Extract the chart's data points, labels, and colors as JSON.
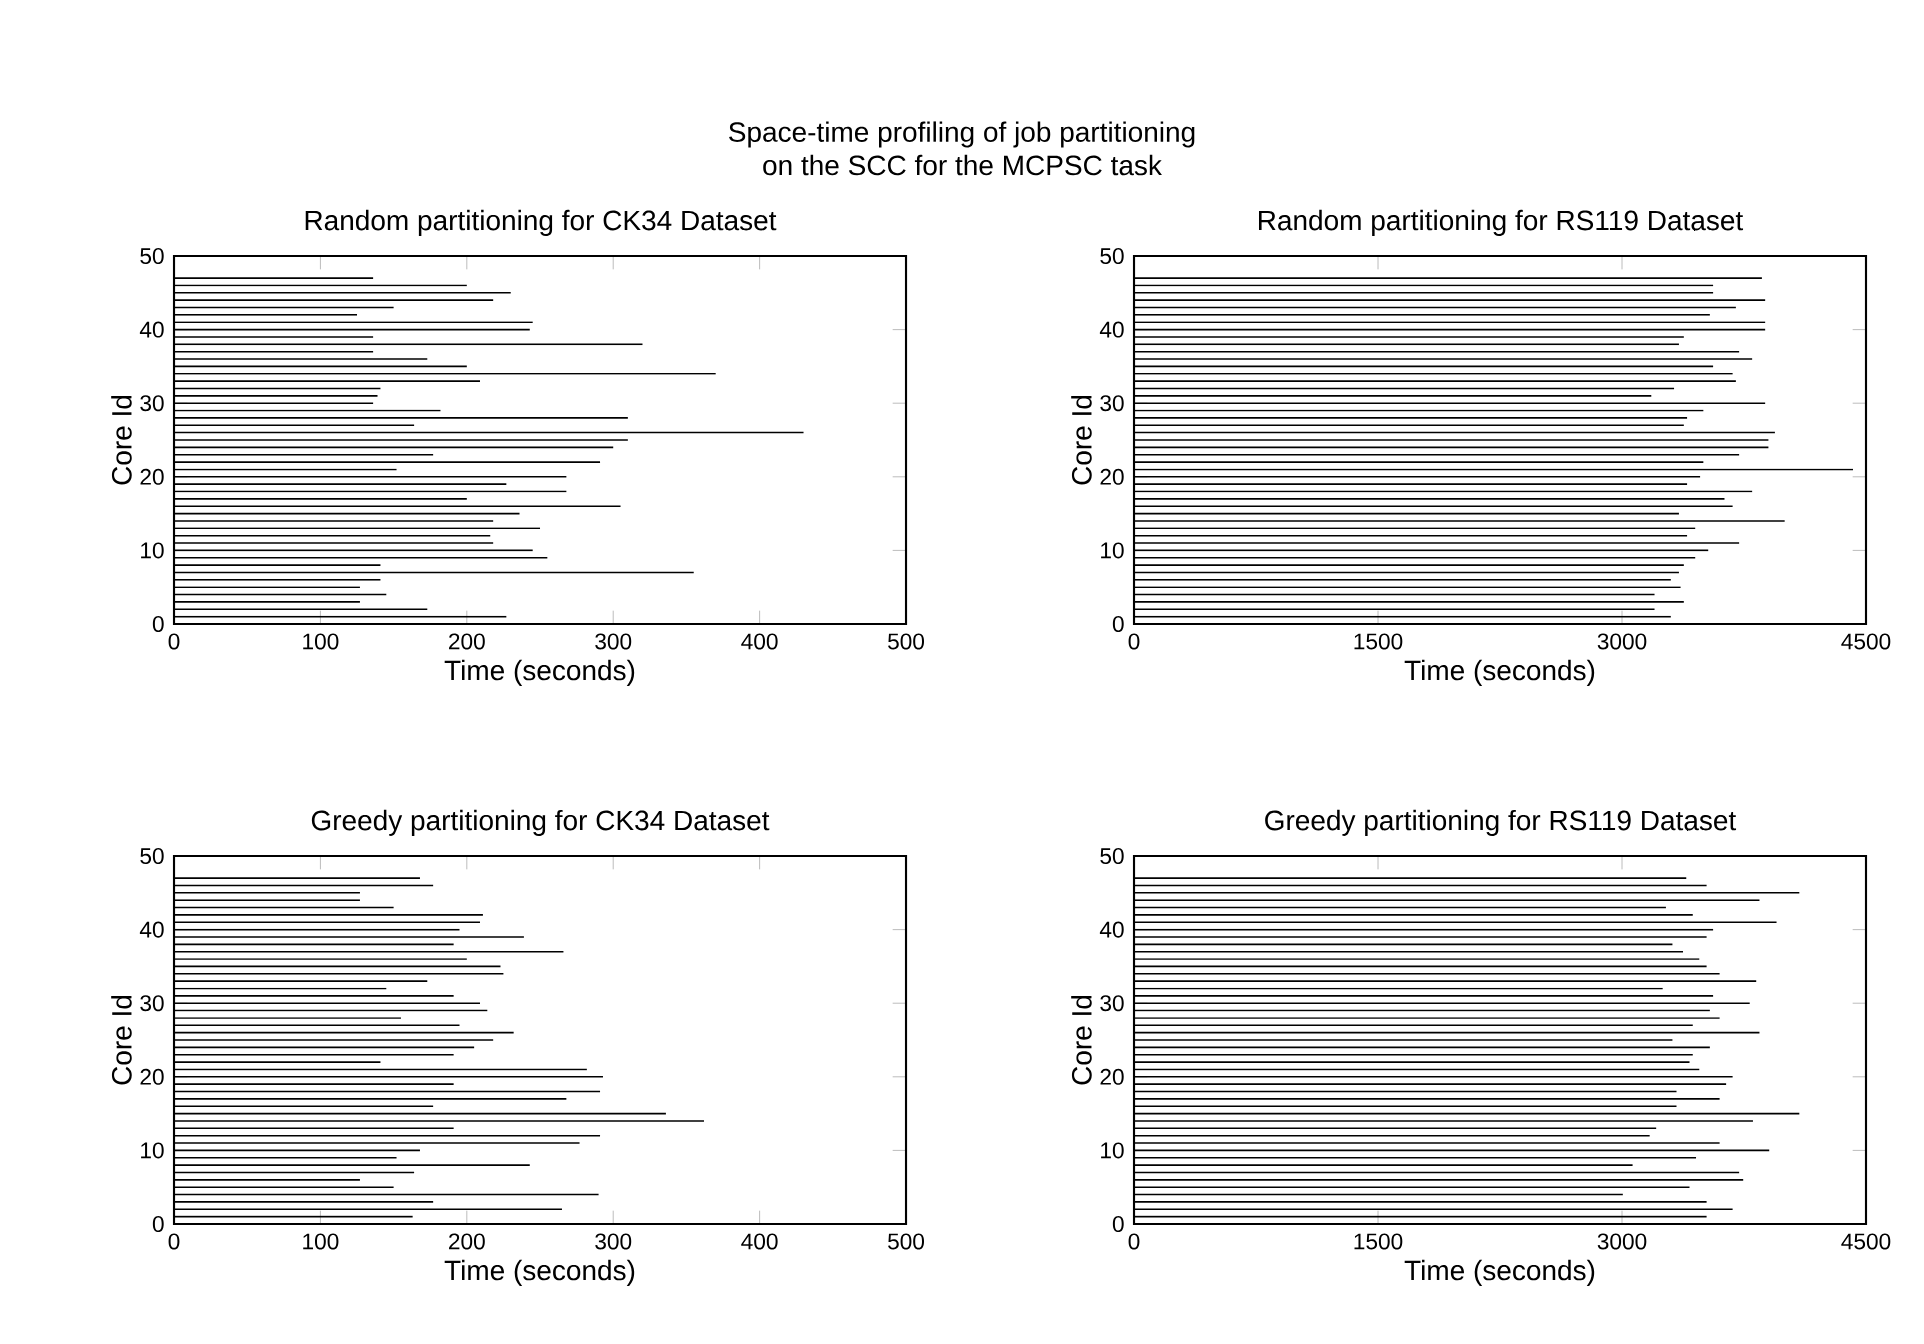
{
  "chart_data": [
    {
      "type": "line",
      "title": "Random partitioning for CK34 Dataset",
      "xlabel": "Time (seconds)",
      "ylabel": "Core Id",
      "annotations": [
        "Space-time profiling of job partitioning",
        "on the SCC for the MCPSC task"
      ],
      "xlim": [
        0,
        500
      ],
      "ylim": [
        0,
        50
      ],
      "xticks": [
        0,
        100,
        200,
        300,
        400,
        500
      ],
      "yticks": [
        0,
        10,
        20,
        30,
        40,
        50
      ],
      "line_style": "solid",
      "series": [
        {
          "color": "#000000",
          "x": [
            0,
            227
          ],
          "values": [
            1,
            1
          ]
        },
        {
          "color": "#000000",
          "x": [
            0,
            173
          ],
          "values": [
            2,
            2
          ]
        },
        {
          "color": "#000000",
          "x": [
            0,
            127
          ],
          "values": [
            3,
            3
          ]
        },
        {
          "color": "#000000",
          "x": [
            0,
            145
          ],
          "values": [
            4,
            4
          ]
        },
        {
          "color": "#000000",
          "x": [
            0,
            127
          ],
          "values": [
            5,
            5
          ]
        },
        {
          "color": "#000000",
          "x": [
            0,
            141
          ],
          "values": [
            6,
            6
          ]
        },
        {
          "color": "#000000",
          "x": [
            0,
            355
          ],
          "values": [
            7,
            7
          ]
        },
        {
          "color": "#000000",
          "x": [
            0,
            141
          ],
          "values": [
            8,
            8
          ]
        },
        {
          "color": "#000000",
          "x": [
            0,
            255
          ],
          "values": [
            9,
            9
          ]
        },
        {
          "color": "#000000",
          "x": [
            0,
            245
          ],
          "values": [
            10,
            10
          ]
        },
        {
          "color": "#000000",
          "x": [
            0,
            218
          ],
          "values": [
            11,
            11
          ]
        },
        {
          "color": "#000000",
          "x": [
            0,
            216
          ],
          "values": [
            12,
            12
          ]
        },
        {
          "color": "#000000",
          "x": [
            0,
            250
          ],
          "values": [
            13,
            13
          ]
        },
        {
          "color": "#000000",
          "x": [
            0,
            218
          ],
          "values": [
            14,
            14
          ]
        },
        {
          "color": "#000000",
          "x": [
            0,
            236
          ],
          "values": [
            15,
            15
          ]
        },
        {
          "color": "#000000",
          "x": [
            0,
            305
          ],
          "values": [
            16,
            16
          ]
        },
        {
          "color": "#000000",
          "x": [
            0,
            200
          ],
          "values": [
            17,
            17
          ]
        },
        {
          "color": "#000000",
          "x": [
            0,
            268
          ],
          "values": [
            18,
            18
          ]
        },
        {
          "color": "#000000",
          "x": [
            0,
            227
          ],
          "values": [
            19,
            19
          ]
        },
        {
          "color": "#000000",
          "x": [
            0,
            268
          ],
          "values": [
            20,
            20
          ]
        },
        {
          "color": "#000000",
          "x": [
            0,
            152
          ],
          "values": [
            21,
            21
          ]
        },
        {
          "color": "#000000",
          "x": [
            0,
            291
          ],
          "values": [
            22,
            22
          ]
        },
        {
          "color": "#000000",
          "x": [
            0,
            177
          ],
          "values": [
            23,
            23
          ]
        },
        {
          "color": "#000000",
          "x": [
            0,
            300
          ],
          "values": [
            24,
            24
          ]
        },
        {
          "color": "#000000",
          "x": [
            0,
            310
          ],
          "values": [
            25,
            25
          ]
        },
        {
          "color": "#000000",
          "x": [
            0,
            430
          ],
          "values": [
            26,
            26
          ]
        },
        {
          "color": "#000000",
          "x": [
            0,
            164
          ],
          "values": [
            27,
            27
          ]
        },
        {
          "color": "#000000",
          "x": [
            0,
            310
          ],
          "values": [
            28,
            28
          ]
        },
        {
          "color": "#000000",
          "x": [
            0,
            182
          ],
          "values": [
            29,
            29
          ]
        },
        {
          "color": "#000000",
          "x": [
            0,
            136
          ],
          "values": [
            30,
            30
          ]
        },
        {
          "color": "#000000",
          "x": [
            0,
            139
          ],
          "values": [
            31,
            31
          ]
        },
        {
          "color": "#000000",
          "x": [
            0,
            141
          ],
          "values": [
            32,
            32
          ]
        },
        {
          "color": "#000000",
          "x": [
            0,
            209
          ],
          "values": [
            33,
            33
          ]
        },
        {
          "color": "#000000",
          "x": [
            0,
            370
          ],
          "values": [
            34,
            34
          ]
        },
        {
          "color": "#000000",
          "x": [
            0,
            200
          ],
          "values": [
            35,
            35
          ]
        },
        {
          "color": "#000000",
          "x": [
            0,
            173
          ],
          "values": [
            36,
            36
          ]
        },
        {
          "color": "#000000",
          "x": [
            0,
            136
          ],
          "values": [
            37,
            37
          ]
        },
        {
          "color": "#000000",
          "x": [
            0,
            320
          ],
          "values": [
            38,
            38
          ]
        },
        {
          "color": "#000000",
          "x": [
            0,
            136
          ],
          "values": [
            39,
            39
          ]
        },
        {
          "color": "#000000",
          "x": [
            0,
            243
          ],
          "values": [
            40,
            40
          ]
        },
        {
          "color": "#000000",
          "x": [
            0,
            245
          ],
          "values": [
            41,
            41
          ]
        },
        {
          "color": "#000000",
          "x": [
            0,
            125
          ],
          "values": [
            42,
            42
          ]
        },
        {
          "color": "#000000",
          "x": [
            0,
            150
          ],
          "values": [
            43,
            43
          ]
        },
        {
          "color": "#000000",
          "x": [
            0,
            218
          ],
          "values": [
            44,
            44
          ]
        },
        {
          "color": "#000000",
          "x": [
            0,
            230
          ],
          "values": [
            45,
            45
          ]
        },
        {
          "color": "#000000",
          "x": [
            0,
            200
          ],
          "values": [
            46,
            46
          ]
        },
        {
          "color": "#000000",
          "x": [
            0,
            136
          ],
          "values": [
            47,
            47
          ]
        }
      ]
    },
    {
      "type": "line",
      "title": "Random partitioning for RS119 Dataset",
      "xlabel": "Time (seconds)",
      "ylabel": "Core Id",
      "xlim": [
        0,
        4500
      ],
      "ylim": [
        0,
        50
      ],
      "xticks": [
        0,
        1500,
        3000,
        4500
      ],
      "yticks": [
        0,
        10,
        20,
        30,
        40,
        50
      ],
      "line_style": "solid",
      "series": [
        {
          "color": "#000000",
          "x": [
            0,
            3300
          ],
          "values": [
            1,
            1
          ]
        },
        {
          "color": "#000000",
          "x": [
            0,
            3200
          ],
          "values": [
            2,
            2
          ]
        },
        {
          "color": "#000000",
          "x": [
            0,
            3380
          ],
          "values": [
            3,
            3
          ]
        },
        {
          "color": "#000000",
          "x": [
            0,
            3200
          ],
          "values": [
            4,
            4
          ]
        },
        {
          "color": "#000000",
          "x": [
            0,
            3360
          ],
          "values": [
            5,
            5
          ]
        },
        {
          "color": "#000000",
          "x": [
            0,
            3300
          ],
          "values": [
            6,
            6
          ]
        },
        {
          "color": "#000000",
          "x": [
            0,
            3350
          ],
          "values": [
            7,
            7
          ]
        },
        {
          "color": "#000000",
          "x": [
            0,
            3380
          ],
          "values": [
            8,
            8
          ]
        },
        {
          "color": "#000000",
          "x": [
            0,
            3450
          ],
          "values": [
            9,
            9
          ]
        },
        {
          "color": "#000000",
          "x": [
            0,
            3530
          ],
          "values": [
            10,
            10
          ]
        },
        {
          "color": "#000000",
          "x": [
            0,
            3720
          ],
          "values": [
            11,
            11
          ]
        },
        {
          "color": "#000000",
          "x": [
            0,
            3400
          ],
          "values": [
            12,
            12
          ]
        },
        {
          "color": "#000000",
          "x": [
            0,
            3450
          ],
          "values": [
            13,
            13
          ]
        },
        {
          "color": "#000000",
          "x": [
            0,
            4000
          ],
          "values": [
            14,
            14
          ]
        },
        {
          "color": "#000000",
          "x": [
            0,
            3350
          ],
          "values": [
            15,
            15
          ]
        },
        {
          "color": "#000000",
          "x": [
            0,
            3680
          ],
          "values": [
            16,
            16
          ]
        },
        {
          "color": "#000000",
          "x": [
            0,
            3630
          ],
          "values": [
            17,
            17
          ]
        },
        {
          "color": "#000000",
          "x": [
            0,
            3800
          ],
          "values": [
            18,
            18
          ]
        },
        {
          "color": "#000000",
          "x": [
            0,
            3400
          ],
          "values": [
            19,
            19
          ]
        },
        {
          "color": "#000000",
          "x": [
            0,
            3480
          ],
          "values": [
            20,
            20
          ]
        },
        {
          "color": "#000000",
          "x": [
            0,
            4420
          ],
          "values": [
            21,
            21
          ]
        },
        {
          "color": "#000000",
          "x": [
            0,
            3500
          ],
          "values": [
            22,
            22
          ]
        },
        {
          "color": "#000000",
          "x": [
            0,
            3720
          ],
          "values": [
            23,
            23
          ]
        },
        {
          "color": "#000000",
          "x": [
            0,
            3900
          ],
          "values": [
            24,
            24
          ]
        },
        {
          "color": "#000000",
          "x": [
            0,
            3900
          ],
          "values": [
            25,
            25
          ]
        },
        {
          "color": "#000000",
          "x": [
            0,
            3940
          ],
          "values": [
            26,
            26
          ]
        },
        {
          "color": "#000000",
          "x": [
            0,
            3380
          ],
          "values": [
            27,
            27
          ]
        },
        {
          "color": "#000000",
          "x": [
            0,
            3400
          ],
          "values": [
            28,
            28
          ]
        },
        {
          "color": "#000000",
          "x": [
            0,
            3500
          ],
          "values": [
            29,
            29
          ]
        },
        {
          "color": "#000000",
          "x": [
            0,
            3880
          ],
          "values": [
            30,
            30
          ]
        },
        {
          "color": "#000000",
          "x": [
            0,
            3180
          ],
          "values": [
            31,
            31
          ]
        },
        {
          "color": "#000000",
          "x": [
            0,
            3320
          ],
          "values": [
            32,
            32
          ]
        },
        {
          "color": "#000000",
          "x": [
            0,
            3700
          ],
          "values": [
            33,
            33
          ]
        },
        {
          "color": "#000000",
          "x": [
            0,
            3680
          ],
          "values": [
            34,
            34
          ]
        },
        {
          "color": "#000000",
          "x": [
            0,
            3560
          ],
          "values": [
            35,
            35
          ]
        },
        {
          "color": "#000000",
          "x": [
            0,
            3800
          ],
          "values": [
            36,
            36
          ]
        },
        {
          "color": "#000000",
          "x": [
            0,
            3720
          ],
          "values": [
            37,
            37
          ]
        },
        {
          "color": "#000000",
          "x": [
            0,
            3350
          ],
          "values": [
            38,
            38
          ]
        },
        {
          "color": "#000000",
          "x": [
            0,
            3380
          ],
          "values": [
            39,
            39
          ]
        },
        {
          "color": "#000000",
          "x": [
            0,
            3880
          ],
          "values": [
            40,
            40
          ]
        },
        {
          "color": "#000000",
          "x": [
            0,
            3880
          ],
          "values": [
            41,
            41
          ]
        },
        {
          "color": "#000000",
          "x": [
            0,
            3540
          ],
          "values": [
            42,
            42
          ]
        },
        {
          "color": "#000000",
          "x": [
            0,
            3700
          ],
          "values": [
            43,
            43
          ]
        },
        {
          "color": "#000000",
          "x": [
            0,
            3880
          ],
          "values": [
            44,
            44
          ]
        },
        {
          "color": "#000000",
          "x": [
            0,
            3560
          ],
          "values": [
            45,
            45
          ]
        },
        {
          "color": "#000000",
          "x": [
            0,
            3560
          ],
          "values": [
            46,
            46
          ]
        },
        {
          "color": "#000000",
          "x": [
            0,
            3860
          ],
          "values": [
            47,
            47
          ]
        }
      ]
    },
    {
      "type": "line",
      "title": "Greedy partitioning for CK34 Dataset",
      "xlabel": "Time (seconds)",
      "ylabel": "Core Id",
      "xlim": [
        0,
        500
      ],
      "ylim": [
        0,
        50
      ],
      "xticks": [
        0,
        100,
        200,
        300,
        400,
        500
      ],
      "yticks": [
        0,
        10,
        20,
        30,
        40,
        50
      ],
      "line_style": "solid",
      "series": [
        {
          "color": "#000000",
          "x": [
            0,
            163
          ],
          "values": [
            1,
            1
          ]
        },
        {
          "color": "#000000",
          "x": [
            0,
            265
          ],
          "values": [
            2,
            2
          ]
        },
        {
          "color": "#000000",
          "x": [
            0,
            177
          ],
          "values": [
            3,
            3
          ]
        },
        {
          "color": "#000000",
          "x": [
            0,
            290
          ],
          "values": [
            4,
            4
          ]
        },
        {
          "color": "#000000",
          "x": [
            0,
            150
          ],
          "values": [
            5,
            5
          ]
        },
        {
          "color": "#000000",
          "x": [
            0,
            127
          ],
          "values": [
            6,
            6
          ]
        },
        {
          "color": "#000000",
          "x": [
            0,
            164
          ],
          "values": [
            7,
            7
          ]
        },
        {
          "color": "#000000",
          "x": [
            0,
            243
          ],
          "values": [
            8,
            8
          ]
        },
        {
          "color": "#000000",
          "x": [
            0,
            152
          ],
          "values": [
            9,
            9
          ]
        },
        {
          "color": "#000000",
          "x": [
            0,
            168
          ],
          "values": [
            10,
            10
          ]
        },
        {
          "color": "#000000",
          "x": [
            0,
            277
          ],
          "values": [
            11,
            11
          ]
        },
        {
          "color": "#000000",
          "x": [
            0,
            291
          ],
          "values": [
            12,
            12
          ]
        },
        {
          "color": "#000000",
          "x": [
            0,
            191
          ],
          "values": [
            13,
            13
          ]
        },
        {
          "color": "#000000",
          "x": [
            0,
            362
          ],
          "values": [
            14,
            14
          ]
        },
        {
          "color": "#000000",
          "x": [
            0,
            336
          ],
          "values": [
            15,
            15
          ]
        },
        {
          "color": "#000000",
          "x": [
            0,
            177
          ],
          "values": [
            16,
            16
          ]
        },
        {
          "color": "#000000",
          "x": [
            0,
            268
          ],
          "values": [
            17,
            17
          ]
        },
        {
          "color": "#000000",
          "x": [
            0,
            291
          ],
          "values": [
            18,
            18
          ]
        },
        {
          "color": "#000000",
          "x": [
            0,
            191
          ],
          "values": [
            19,
            19
          ]
        },
        {
          "color": "#000000",
          "x": [
            0,
            293
          ],
          "values": [
            20,
            20
          ]
        },
        {
          "color": "#000000",
          "x": [
            0,
            282
          ],
          "values": [
            21,
            21
          ]
        },
        {
          "color": "#000000",
          "x": [
            0,
            141
          ],
          "values": [
            22,
            22
          ]
        },
        {
          "color": "#000000",
          "x": [
            0,
            191
          ],
          "values": [
            23,
            23
          ]
        },
        {
          "color": "#000000",
          "x": [
            0,
            205
          ],
          "values": [
            24,
            24
          ]
        },
        {
          "color": "#000000",
          "x": [
            0,
            218
          ],
          "values": [
            25,
            25
          ]
        },
        {
          "color": "#000000",
          "x": [
            0,
            232
          ],
          "values": [
            26,
            26
          ]
        },
        {
          "color": "#000000",
          "x": [
            0,
            195
          ],
          "values": [
            27,
            27
          ]
        },
        {
          "color": "#000000",
          "x": [
            0,
            155
          ],
          "values": [
            28,
            28
          ]
        },
        {
          "color": "#000000",
          "x": [
            0,
            214
          ],
          "values": [
            29,
            29
          ]
        },
        {
          "color": "#000000",
          "x": [
            0,
            209
          ],
          "values": [
            30,
            30
          ]
        },
        {
          "color": "#000000",
          "x": [
            0,
            191
          ],
          "values": [
            31,
            31
          ]
        },
        {
          "color": "#000000",
          "x": [
            0,
            145
          ],
          "values": [
            32,
            32
          ]
        },
        {
          "color": "#000000",
          "x": [
            0,
            173
          ],
          "values": [
            33,
            33
          ]
        },
        {
          "color": "#000000",
          "x": [
            0,
            225
          ],
          "values": [
            34,
            34
          ]
        },
        {
          "color": "#000000",
          "x": [
            0,
            223
          ],
          "values": [
            35,
            35
          ]
        },
        {
          "color": "#000000",
          "x": [
            0,
            200
          ],
          "values": [
            36,
            36
          ]
        },
        {
          "color": "#000000",
          "x": [
            0,
            266
          ],
          "values": [
            37,
            37
          ]
        },
        {
          "color": "#000000",
          "x": [
            0,
            191
          ],
          "values": [
            38,
            38
          ]
        },
        {
          "color": "#000000",
          "x": [
            0,
            239
          ],
          "values": [
            39,
            39
          ]
        },
        {
          "color": "#000000",
          "x": [
            0,
            195
          ],
          "values": [
            40,
            40
          ]
        },
        {
          "color": "#000000",
          "x": [
            0,
            209
          ],
          "values": [
            41,
            41
          ]
        },
        {
          "color": "#000000",
          "x": [
            0,
            211
          ],
          "values": [
            42,
            42
          ]
        },
        {
          "color": "#000000",
          "x": [
            0,
            150
          ],
          "values": [
            43,
            43
          ]
        },
        {
          "color": "#000000",
          "x": [
            0,
            127
          ],
          "values": [
            44,
            44
          ]
        },
        {
          "color": "#000000",
          "x": [
            0,
            127
          ],
          "values": [
            45,
            45
          ]
        },
        {
          "color": "#000000",
          "x": [
            0,
            177
          ],
          "values": [
            46,
            46
          ]
        },
        {
          "color": "#000000",
          "x": [
            0,
            168
          ],
          "values": [
            47,
            47
          ]
        }
      ]
    },
    {
      "type": "line",
      "title": "Greedy partitioning for RS119 Dataset",
      "xlabel": "Time (seconds)",
      "ylabel": "Core Id",
      "xlim": [
        0,
        4500
      ],
      "ylim": [
        0,
        50
      ],
      "xticks": [
        0,
        1500,
        3000,
        4500
      ],
      "yticks": [
        0,
        10,
        20,
        30,
        40,
        50
      ],
      "line_style": "solid",
      "series": [
        {
          "color": "#000000",
          "x": [
            0,
            3520
          ],
          "values": [
            1,
            1
          ]
        },
        {
          "color": "#000000",
          "x": [
            0,
            3680
          ],
          "values": [
            2,
            2
          ]
        },
        {
          "color": "#000000",
          "x": [
            0,
            3520
          ],
          "values": [
            3,
            3
          ]
        },
        {
          "color": "#000000",
          "x": [
            0,
            3005
          ],
          "values": [
            4,
            4
          ]
        },
        {
          "color": "#000000",
          "x": [
            0,
            3415
          ],
          "values": [
            5,
            5
          ]
        },
        {
          "color": "#000000",
          "x": [
            0,
            3745
          ],
          "values": [
            6,
            6
          ]
        },
        {
          "color": "#000000",
          "x": [
            0,
            3720
          ],
          "values": [
            7,
            7
          ]
        },
        {
          "color": "#000000",
          "x": [
            0,
            3065
          ],
          "values": [
            8,
            8
          ]
        },
        {
          "color": "#000000",
          "x": [
            0,
            3455
          ],
          "values": [
            9,
            9
          ]
        },
        {
          "color": "#000000",
          "x": [
            0,
            3905
          ],
          "values": [
            10,
            10
          ]
        },
        {
          "color": "#000000",
          "x": [
            0,
            3600
          ],
          "values": [
            11,
            11
          ]
        },
        {
          "color": "#000000",
          "x": [
            0,
            3170
          ],
          "values": [
            12,
            12
          ]
        },
        {
          "color": "#000000",
          "x": [
            0,
            3210
          ],
          "values": [
            13,
            13
          ]
        },
        {
          "color": "#000000",
          "x": [
            0,
            3805
          ],
          "values": [
            14,
            14
          ]
        },
        {
          "color": "#000000",
          "x": [
            0,
            4090
          ],
          "values": [
            15,
            15
          ]
        },
        {
          "color": "#000000",
          "x": [
            0,
            3335
          ],
          "values": [
            16,
            16
          ]
        },
        {
          "color": "#000000",
          "x": [
            0,
            3600
          ],
          "values": [
            17,
            17
          ]
        },
        {
          "color": "#000000",
          "x": [
            0,
            3335
          ],
          "values": [
            18,
            18
          ]
        },
        {
          "color": "#000000",
          "x": [
            0,
            3640
          ],
          "values": [
            19,
            19
          ]
        },
        {
          "color": "#000000",
          "x": [
            0,
            3680
          ],
          "values": [
            20,
            20
          ]
        },
        {
          "color": "#000000",
          "x": [
            0,
            3475
          ],
          "values": [
            21,
            21
          ]
        },
        {
          "color": "#000000",
          "x": [
            0,
            3415
          ],
          "values": [
            22,
            22
          ]
        },
        {
          "color": "#000000",
          "x": [
            0,
            3435
          ],
          "values": [
            23,
            23
          ]
        },
        {
          "color": "#000000",
          "x": [
            0,
            3540
          ],
          "values": [
            24,
            24
          ]
        },
        {
          "color": "#000000",
          "x": [
            0,
            3310
          ],
          "values": [
            25,
            25
          ]
        },
        {
          "color": "#000000",
          "x": [
            0,
            3845
          ],
          "values": [
            26,
            26
          ]
        },
        {
          "color": "#000000",
          "x": [
            0,
            3435
          ],
          "values": [
            27,
            27
          ]
        },
        {
          "color": "#000000",
          "x": [
            0,
            3600
          ],
          "values": [
            28,
            28
          ]
        },
        {
          "color": "#000000",
          "x": [
            0,
            3540
          ],
          "values": [
            29,
            29
          ]
        },
        {
          "color": "#000000",
          "x": [
            0,
            3785
          ],
          "values": [
            30,
            30
          ]
        },
        {
          "color": "#000000",
          "x": [
            0,
            3560
          ],
          "values": [
            31,
            31
          ]
        },
        {
          "color": "#000000",
          "x": [
            0,
            3250
          ],
          "values": [
            32,
            32
          ]
        },
        {
          "color": "#000000",
          "x": [
            0,
            3825
          ],
          "values": [
            33,
            33
          ]
        },
        {
          "color": "#000000",
          "x": [
            0,
            3600
          ],
          "values": [
            34,
            34
          ]
        },
        {
          "color": "#000000",
          "x": [
            0,
            3520
          ],
          "values": [
            35,
            35
          ]
        },
        {
          "color": "#000000",
          "x": [
            0,
            3475
          ],
          "values": [
            36,
            36
          ]
        },
        {
          "color": "#000000",
          "x": [
            0,
            3375
          ],
          "values": [
            37,
            37
          ]
        },
        {
          "color": "#000000",
          "x": [
            0,
            3310
          ],
          "values": [
            38,
            38
          ]
        },
        {
          "color": "#000000",
          "x": [
            0,
            3520
          ],
          "values": [
            39,
            39
          ]
        },
        {
          "color": "#000000",
          "x": [
            0,
            3560
          ],
          "values": [
            40,
            40
          ]
        },
        {
          "color": "#000000",
          "x": [
            0,
            3950
          ],
          "values": [
            41,
            41
          ]
        },
        {
          "color": "#000000",
          "x": [
            0,
            3435
          ],
          "values": [
            42,
            42
          ]
        },
        {
          "color": "#000000",
          "x": [
            0,
            3270
          ],
          "values": [
            43,
            43
          ]
        },
        {
          "color": "#000000",
          "x": [
            0,
            3845
          ],
          "values": [
            44,
            44
          ]
        },
        {
          "color": "#000000",
          "x": [
            0,
            4090
          ],
          "values": [
            45,
            45
          ]
        },
        {
          "color": "#000000",
          "x": [
            0,
            3520
          ],
          "values": [
            46,
            46
          ]
        },
        {
          "color": "#000000",
          "x": [
            0,
            3395
          ],
          "values": [
            47,
            47
          ]
        }
      ]
    }
  ]
}
